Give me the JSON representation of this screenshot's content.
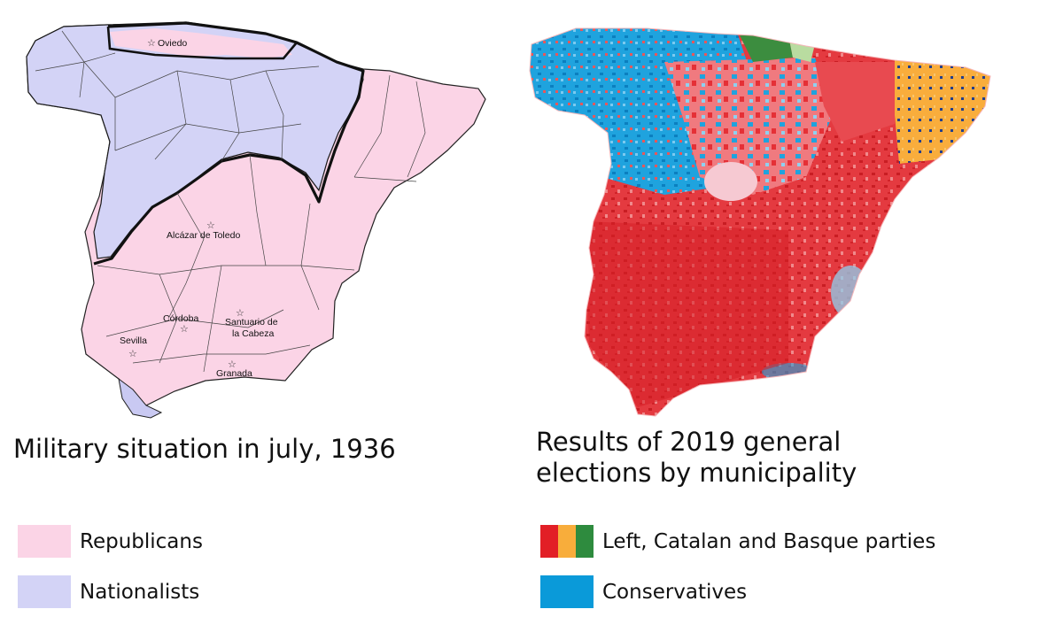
{
  "left_map": {
    "caption": "Military situation in july, 1936",
    "places": [
      {
        "name": "Oviedo"
      },
      {
        "name": "Alcázar de Toledo"
      },
      {
        "name": "Córdoba"
      },
      {
        "name": "Santuario de"
      },
      {
        "name": "la Cabeza"
      },
      {
        "name": "Sevilla"
      },
      {
        "name": "Granada"
      }
    ],
    "legend": [
      {
        "label": "Republicans",
        "color": "#fbd4e6"
      },
      {
        "label": "Nationalists",
        "color": "#d3d3f6"
      }
    ]
  },
  "right_map": {
    "caption_line1": "Results of 2019 general",
    "caption_line2": "elections by municipality",
    "legend": [
      {
        "label": "Left, Catalan and Basque parties",
        "colors": [
          "#e21f26",
          "#f8ad3b",
          "#2e8b3e"
        ]
      },
      {
        "label": "Conservatives",
        "color": "#0a9ad9"
      }
    ]
  }
}
